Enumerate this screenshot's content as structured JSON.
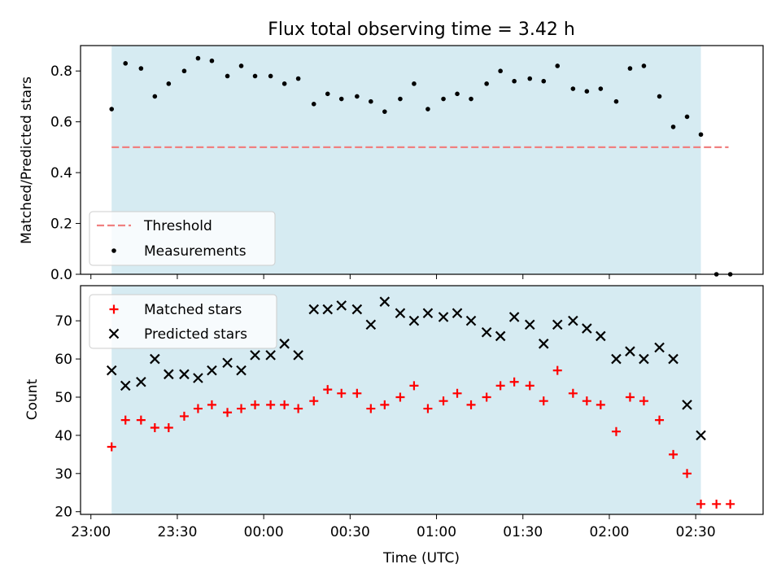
{
  "chart_data": {
    "title": "Flux total observing time = 3.42 h",
    "x_axis": {
      "label": "Time (UTC)",
      "unit": "hours since 23:00 UTC",
      "ticks": [
        {
          "value": 0.0,
          "label": "23:00"
        },
        {
          "value": 0.5,
          "label": "23:30"
        },
        {
          "value": 1.0,
          "label": "00:00"
        },
        {
          "value": 1.5,
          "label": "00:30"
        },
        {
          "value": 2.0,
          "label": "01:00"
        },
        {
          "value": 2.5,
          "label": "01:30"
        },
        {
          "value": 3.0,
          "label": "02:00"
        },
        {
          "value": 3.5,
          "label": "02:30"
        }
      ],
      "range": [
        -0.06,
        3.89
      ]
    },
    "observing_span": {
      "start": 0.12,
      "end": 3.53,
      "color": "#add8e6"
    },
    "top_panel": {
      "type": "scatter",
      "ylabel": "Matched/Predicted stars",
      "ylim": [
        0.0,
        0.9
      ],
      "yticks": [
        "0.0",
        "0.2",
        "0.4",
        "0.6",
        "0.8"
      ],
      "legend": {
        "location": "lower-left",
        "entries": [
          "Threshold",
          "Measurements"
        ]
      },
      "threshold": {
        "name": "Threshold",
        "value": 0.5,
        "x_start": 0.12,
        "x_end": 3.69,
        "color": "#f08080"
      },
      "measurements": {
        "name": "Measurements",
        "color": "#000000",
        "x": [
          0.12,
          0.2,
          0.29,
          0.37,
          0.45,
          0.54,
          0.62,
          0.7,
          0.79,
          0.87,
          0.95,
          1.04,
          1.12,
          1.2,
          1.29,
          1.37,
          1.45,
          1.54,
          1.62,
          1.7,
          1.79,
          1.87,
          1.95,
          2.04,
          2.12,
          2.2,
          2.29,
          2.37,
          2.45,
          2.54,
          2.62,
          2.7,
          2.79,
          2.87,
          2.95,
          3.04,
          3.12,
          3.2,
          3.29,
          3.37,
          3.45,
          3.53,
          3.62,
          3.7
        ],
        "y": [
          0.65,
          0.83,
          0.81,
          0.7,
          0.75,
          0.8,
          0.85,
          0.84,
          0.78,
          0.82,
          0.78,
          0.78,
          0.75,
          0.77,
          0.67,
          0.71,
          0.69,
          0.7,
          0.68,
          0.64,
          0.69,
          0.75,
          0.65,
          0.69,
          0.71,
          0.69,
          0.75,
          0.8,
          0.76,
          0.77,
          0.76,
          0.82,
          0.73,
          0.72,
          0.73,
          0.68,
          0.81,
          0.82,
          0.7,
          0.58,
          0.62,
          0.55,
          0.0,
          0.0
        ]
      }
    },
    "bottom_panel": {
      "type": "scatter",
      "ylabel": "Count",
      "ylim": [
        19.3,
        79.2
      ],
      "yticks": [
        "20",
        "30",
        "40",
        "50",
        "60",
        "70"
      ],
      "legend": {
        "location": "top-left",
        "entries": [
          "Matched stars",
          "Predicted stars"
        ]
      },
      "series": [
        {
          "name": "Matched stars",
          "marker": "plus",
          "color": "#ff0000",
          "x": [
            0.12,
            0.2,
            0.29,
            0.37,
            0.45,
            0.54,
            0.62,
            0.7,
            0.79,
            0.87,
            0.95,
            1.04,
            1.12,
            1.2,
            1.29,
            1.37,
            1.45,
            1.54,
            1.62,
            1.7,
            1.79,
            1.87,
            1.95,
            2.04,
            2.12,
            2.2,
            2.29,
            2.37,
            2.45,
            2.54,
            2.62,
            2.7,
            2.79,
            2.87,
            2.95,
            3.04,
            3.12,
            3.2,
            3.29,
            3.37,
            3.45,
            3.53,
            3.62,
            3.7
          ],
          "y": [
            37,
            44,
            44,
            42,
            42,
            45,
            47,
            48,
            46,
            47,
            48,
            48,
            48,
            47,
            49,
            52,
            51,
            51,
            47,
            48,
            50,
            53,
            47,
            49,
            51,
            48,
            50,
            53,
            54,
            53,
            49,
            57,
            51,
            49,
            48,
            41,
            50,
            49,
            44,
            35,
            30,
            22,
            22,
            22
          ]
        },
        {
          "name": "Predicted stars",
          "marker": "x",
          "color": "#000000",
          "x": [
            0.12,
            0.2,
            0.29,
            0.37,
            0.45,
            0.54,
            0.62,
            0.7,
            0.79,
            0.87,
            0.95,
            1.04,
            1.12,
            1.2,
            1.29,
            1.37,
            1.45,
            1.54,
            1.62,
            1.7,
            1.79,
            1.87,
            1.95,
            2.04,
            2.12,
            2.2,
            2.29,
            2.37,
            2.45,
            2.54,
            2.62,
            2.7,
            2.79,
            2.87,
            2.95,
            3.04,
            3.12,
            3.2,
            3.29,
            3.37,
            3.45,
            3.53
          ],
          "y": [
            57,
            53,
            54,
            60,
            56,
            56,
            55,
            57,
            59,
            57,
            61,
            61,
            64,
            61,
            73,
            73,
            74,
            73,
            69,
            75,
            72,
            70,
            72,
            71,
            72,
            70,
            67,
            66,
            71,
            69,
            64,
            69,
            70,
            68,
            66,
            60,
            62,
            60,
            63,
            60,
            48,
            40
          ]
        }
      ]
    }
  }
}
